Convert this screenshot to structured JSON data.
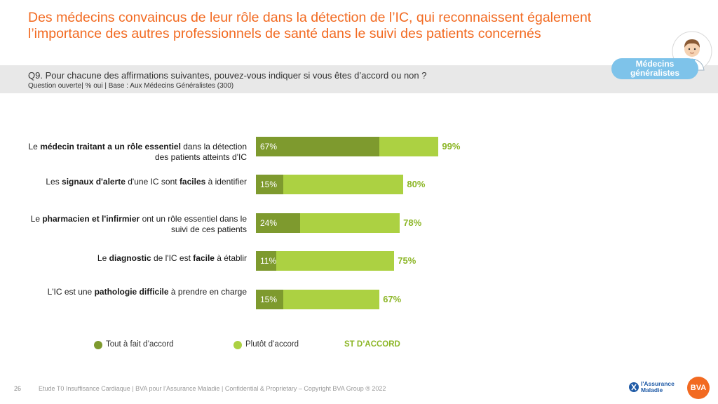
{
  "title": "Des médecins convaincus de leur rôle dans la détection de l’IC, qui reconnaissent également l’importance des autres professionnels de santé dans le suivi des patients concernés",
  "badge": "Médecins généralistes",
  "question": "Q9. Pour chacune des affirmations suivantes, pouvez-vous indiquer si vous êtes d’accord ou non ?",
  "question_sub": "Question ouverte| % oui | Base : Aux Médecins Généralistes (300)",
  "rows": [
    {
      "label_parts": [
        {
          "t": "Le ",
          "b": false
        },
        {
          "t": "médecin traitant a un rôle essentiel",
          "b": true
        },
        {
          "t": " dans la détection des patients atteints d'IC",
          "b": false
        }
      ]
    },
    {
      "label_parts": [
        {
          "t": "Les ",
          "b": false
        },
        {
          "t": "signaux d'alerte",
          "b": true
        },
        {
          "t": " d'une IC sont ",
          "b": false
        },
        {
          "t": "faciles",
          "b": true
        },
        {
          "t": " à identifier",
          "b": false
        }
      ]
    },
    {
      "label_parts": [
        {
          "t": "Le ",
          "b": false
        },
        {
          "t": "pharmacien et l'infirmier",
          "b": true
        },
        {
          "t": " ont un rôle essentiel dans le suivi de ces patients",
          "b": false
        }
      ]
    },
    {
      "label_parts": [
        {
          "t": "Le ",
          "b": false
        },
        {
          "t": "diagnostic",
          "b": true
        },
        {
          "t": " de l'IC est ",
          "b": false
        },
        {
          "t": "facile",
          "b": true
        },
        {
          "t": " à établir",
          "b": false
        }
      ]
    },
    {
      "label_parts": [
        {
          "t": "L'IC est une ",
          "b": false
        },
        {
          "t": "pathologie difficile",
          "b": true
        },
        {
          "t": " à prendre en charge",
          "b": false
        }
      ]
    }
  ],
  "chart_data": {
    "type": "bar",
    "orientation": "horizontal",
    "stacked": true,
    "categories": [
      "Le médecin traitant a un rôle essentiel dans la détection des patients atteints d'IC",
      "Les signaux d'alerte d'une IC sont faciles à identifier",
      "Le pharmacien et l'infirmier ont un rôle essentiel dans le suivi de ces patients",
      "Le diagnostic de l'IC est facile à établir",
      "L'IC est une pathologie difficile à prendre en charge"
    ],
    "series": [
      {
        "name": "Tout à fait d’accord",
        "values": [
          67,
          15,
          24,
          11,
          15
        ],
        "labels": [
          "67%",
          "15%",
          "24%",
          "11%",
          "15%"
        ],
        "color": "#7e9a2e"
      },
      {
        "name": "Plutôt d’accord",
        "values": [
          32,
          65,
          54,
          64,
          52
        ],
        "color": "#acd142"
      }
    ],
    "totals": {
      "name": "ST D’ACCORD",
      "values": [
        99,
        80,
        78,
        75,
        67
      ],
      "labels": [
        "99%",
        "80%",
        "78%",
        "75%",
        "67%"
      ],
      "color": "#8cb626"
    },
    "xlim": [
      0,
      100
    ],
    "legend": "bottom"
  },
  "legend": {
    "tout": "Tout à fait d’accord",
    "plutot": "Plutôt d’accord",
    "st": "ST D’ACCORD"
  },
  "footer": {
    "page": "26",
    "text": "Etude T0 Insuffisance Cardiaque | BVA pour l’Assurance Maladie | Confidential & Proprietary – Copyright BVA Group ®  2022"
  },
  "logos": {
    "am_line1": "l'Assurance",
    "am_line2": "Maladie",
    "bva": "BVA"
  },
  "colors": {
    "accent": "#f26a21",
    "dark_green": "#7e9a2e",
    "light_green": "#acd142",
    "total_green": "#8cb626"
  }
}
